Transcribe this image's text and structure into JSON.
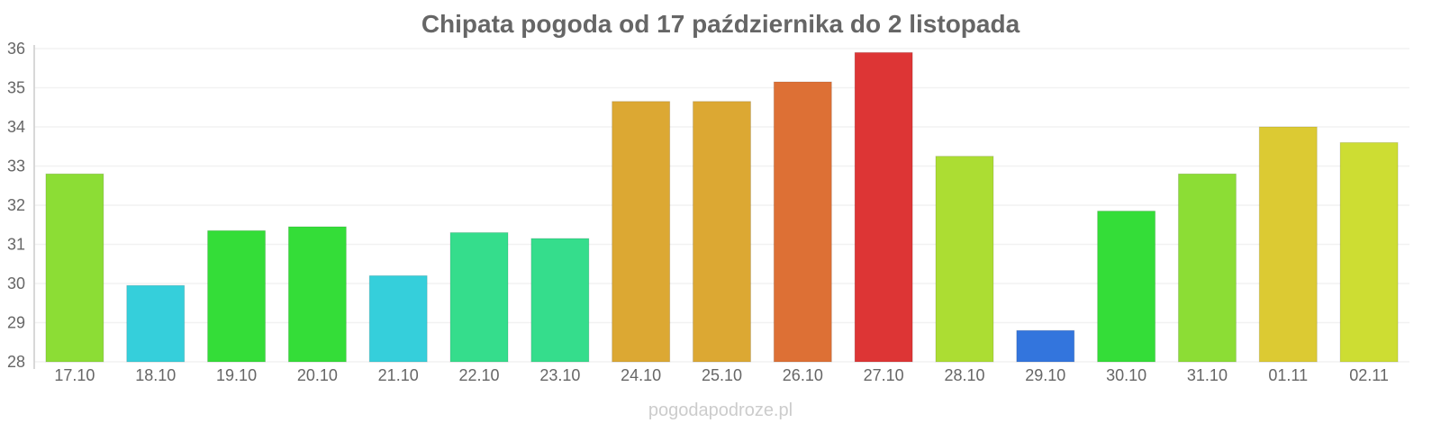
{
  "chart_data": {
    "type": "bar",
    "title": "Chipata pogoda od 17 października do 2 listopada",
    "xlabel": "",
    "ylabel": "",
    "ylim": [
      28,
      36
    ],
    "yticks": [
      28,
      29,
      30,
      31,
      32,
      33,
      34,
      35,
      36
    ],
    "grid": true,
    "categories": [
      "17.10",
      "18.10",
      "19.10",
      "20.10",
      "21.10",
      "22.10",
      "23.10",
      "24.10",
      "25.10",
      "26.10",
      "27.10",
      "28.10",
      "29.10",
      "30.10",
      "31.10",
      "01.11",
      "02.11"
    ],
    "values": [
      32.8,
      29.95,
      31.35,
      31.45,
      30.2,
      31.3,
      31.15,
      34.65,
      34.65,
      35.15,
      35.9,
      33.25,
      28.8,
      31.85,
      32.8,
      34.0,
      33.6
    ],
    "colors": [
      "#8cdd35",
      "#35cfdb",
      "#34dd38",
      "#34dd38",
      "#35cfdb",
      "#35dd8c",
      "#35dd8c",
      "#dca833",
      "#dca833",
      "#dd7035",
      "#dd3535",
      "#acdd33",
      "#3375dd",
      "#34dd38",
      "#8cdd35",
      "#dcca33",
      "#cddd33"
    ]
  },
  "footer": "pogodapodroze.pl"
}
